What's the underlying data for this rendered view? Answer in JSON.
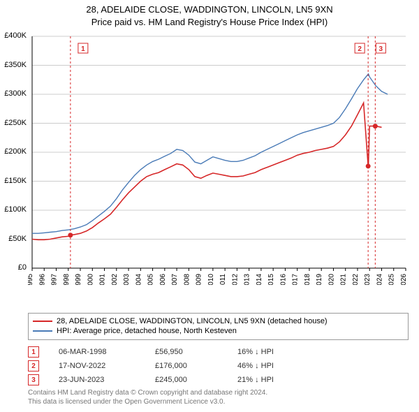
{
  "title": {
    "line1": "28, ADELAIDE CLOSE, WADDINGTON, LINCOLN, LN5 9XN",
    "line2": "Price paid vs. HM Land Registry's House Price Index (HPI)"
  },
  "chart": {
    "type": "line",
    "background_color": "#ffffff",
    "grid_color": "#cccccc",
    "axis_color": "#000000",
    "xlim": [
      1995,
      2026
    ],
    "ylim": [
      0,
      400000
    ],
    "ytick_step": 50000,
    "ytick_labels": [
      "£0",
      "£50K",
      "£100K",
      "£150K",
      "£200K",
      "£250K",
      "£300K",
      "£350K",
      "£400K"
    ],
    "xticks": [
      1995,
      1996,
      1997,
      1998,
      1999,
      2000,
      2001,
      2002,
      2003,
      2004,
      2005,
      2006,
      2007,
      2008,
      2009,
      2010,
      2011,
      2012,
      2013,
      2014,
      2015,
      2016,
      2017,
      2018,
      2019,
      2020,
      2021,
      2022,
      2023,
      2024,
      2025,
      2026
    ],
    "series": [
      {
        "name": "28, ADELAIDE CLOSE, WADDINGTON, LINCOLN, LN5 9XN (detached house)",
        "name_suffix_priceonly": " Price paid",
        "color": "#d62728",
        "line_width": 1.6,
        "data": [
          [
            1995.0,
            50000
          ],
          [
            1995.5,
            49000
          ],
          [
            1996.0,
            49000
          ],
          [
            1996.5,
            50000
          ],
          [
            1997.0,
            52000
          ],
          [
            1997.5,
            54000
          ],
          [
            1998.0,
            55000
          ],
          [
            1998.2,
            56950
          ],
          [
            1998.5,
            58000
          ],
          [
            1999.0,
            60000
          ],
          [
            1999.5,
            64000
          ],
          [
            2000.0,
            70000
          ],
          [
            2000.5,
            78000
          ],
          [
            2001.0,
            85000
          ],
          [
            2001.5,
            93000
          ],
          [
            2002.0,
            105000
          ],
          [
            2002.5,
            118000
          ],
          [
            2003.0,
            130000
          ],
          [
            2003.5,
            140000
          ],
          [
            2004.0,
            150000
          ],
          [
            2004.5,
            158000
          ],
          [
            2005.0,
            162000
          ],
          [
            2005.5,
            165000
          ],
          [
            2006.0,
            170000
          ],
          [
            2006.5,
            175000
          ],
          [
            2007.0,
            180000
          ],
          [
            2007.5,
            178000
          ],
          [
            2008.0,
            170000
          ],
          [
            2008.5,
            158000
          ],
          [
            2009.0,
            155000
          ],
          [
            2009.5,
            160000
          ],
          [
            2010.0,
            164000
          ],
          [
            2010.5,
            162000
          ],
          [
            2011.0,
            160000
          ],
          [
            2011.5,
            158000
          ],
          [
            2012.0,
            158000
          ],
          [
            2012.5,
            159000
          ],
          [
            2013.0,
            162000
          ],
          [
            2013.5,
            165000
          ],
          [
            2014.0,
            170000
          ],
          [
            2014.5,
            174000
          ],
          [
            2015.0,
            178000
          ],
          [
            2015.5,
            182000
          ],
          [
            2016.0,
            186000
          ],
          [
            2016.5,
            190000
          ],
          [
            2017.0,
            195000
          ],
          [
            2017.5,
            198000
          ],
          [
            2018.0,
            200000
          ],
          [
            2018.5,
            203000
          ],
          [
            2019.0,
            205000
          ],
          [
            2019.5,
            207000
          ],
          [
            2020.0,
            210000
          ],
          [
            2020.5,
            218000
          ],
          [
            2021.0,
            230000
          ],
          [
            2021.5,
            245000
          ],
          [
            2022.0,
            265000
          ],
          [
            2022.5,
            285000
          ],
          [
            2022.88,
            176000
          ],
          [
            2022.9,
            176000
          ],
          [
            2023.0,
            245000
          ],
          [
            2023.47,
            245000
          ],
          [
            2023.5,
            245000
          ],
          [
            2024.0,
            243000
          ]
        ]
      },
      {
        "name": "HPI: Average price, detached house, North Kesteven",
        "name_suffix_hpionly": " HPI",
        "color": "#4a7bb7",
        "line_width": 1.4,
        "data": [
          [
            1995.0,
            60000
          ],
          [
            1995.5,
            60000
          ],
          [
            1996.0,
            61000
          ],
          [
            1996.5,
            62000
          ],
          [
            1997.0,
            63000
          ],
          [
            1997.5,
            65000
          ],
          [
            1998.0,
            66000
          ],
          [
            1998.5,
            68000
          ],
          [
            1999.0,
            71000
          ],
          [
            1999.5,
            75000
          ],
          [
            2000.0,
            82000
          ],
          [
            2000.5,
            90000
          ],
          [
            2001.0,
            98000
          ],
          [
            2001.5,
            107000
          ],
          [
            2002.0,
            120000
          ],
          [
            2002.5,
            135000
          ],
          [
            2003.0,
            148000
          ],
          [
            2003.5,
            160000
          ],
          [
            2004.0,
            170000
          ],
          [
            2004.5,
            178000
          ],
          [
            2005.0,
            184000
          ],
          [
            2005.5,
            188000
          ],
          [
            2006.0,
            193000
          ],
          [
            2006.5,
            198000
          ],
          [
            2007.0,
            205000
          ],
          [
            2007.5,
            203000
          ],
          [
            2008.0,
            195000
          ],
          [
            2008.5,
            183000
          ],
          [
            2009.0,
            180000
          ],
          [
            2009.5,
            186000
          ],
          [
            2010.0,
            192000
          ],
          [
            2010.5,
            189000
          ],
          [
            2011.0,
            186000
          ],
          [
            2011.5,
            184000
          ],
          [
            2012.0,
            184000
          ],
          [
            2012.5,
            186000
          ],
          [
            2013.0,
            190000
          ],
          [
            2013.5,
            194000
          ],
          [
            2014.0,
            200000
          ],
          [
            2014.5,
            205000
          ],
          [
            2015.0,
            210000
          ],
          [
            2015.5,
            215000
          ],
          [
            2016.0,
            220000
          ],
          [
            2016.5,
            225000
          ],
          [
            2017.0,
            230000
          ],
          [
            2017.5,
            234000
          ],
          [
            2018.0,
            237000
          ],
          [
            2018.5,
            240000
          ],
          [
            2019.0,
            243000
          ],
          [
            2019.5,
            246000
          ],
          [
            2020.0,
            250000
          ],
          [
            2020.5,
            260000
          ],
          [
            2021.0,
            275000
          ],
          [
            2021.5,
            292000
          ],
          [
            2022.0,
            310000
          ],
          [
            2022.5,
            325000
          ],
          [
            2022.9,
            335000
          ],
          [
            2023.0,
            330000
          ],
          [
            2023.5,
            315000
          ],
          [
            2024.0,
            305000
          ],
          [
            2024.5,
            300000
          ]
        ]
      }
    ],
    "sale_markers": [
      {
        "idx": "1",
        "x": 1998.18,
        "y": 56950,
        "label_offset_x": 18
      },
      {
        "idx": "2",
        "x": 2022.88,
        "y": 176000,
        "label_offset_x": -12
      },
      {
        "idx": "3",
        "x": 2023.47,
        "y": 245000,
        "label_offset_x": 8
      }
    ],
    "marker_style": {
      "vline_color": "#d62728",
      "vline_dash": "3,3",
      "vline_width": 1,
      "dot_color": "#d62728",
      "dot_radius": 3.5,
      "box_border_color": "#d62728",
      "box_text_color": "#d62728",
      "box_fontsize": 10
    },
    "label_fontsize": 11,
    "title_fontsize": 13
  },
  "legend": {
    "series1_label": "28, ADELAIDE CLOSE, WADDINGTON, LINCOLN, LN5 9XN (detached house)",
    "series2_label": "HPI: Average price, detached house, North Kesteven"
  },
  "markers_table": [
    {
      "idx": "1",
      "date": "06-MAR-1998",
      "price": "£56,950",
      "delta": "16% ↓ HPI"
    },
    {
      "idx": "2",
      "date": "17-NOV-2022",
      "price": "£176,000",
      "delta": "46% ↓ HPI"
    },
    {
      "idx": "3",
      "date": "23-JUN-2023",
      "price": "£245,000",
      "delta": "21% ↓ HPI"
    }
  ],
  "footer": {
    "line1": "Contains HM Land Registry data © Crown copyright and database right 2024.",
    "line2": "This data is licensed under the Open Government Licence v3.0."
  }
}
